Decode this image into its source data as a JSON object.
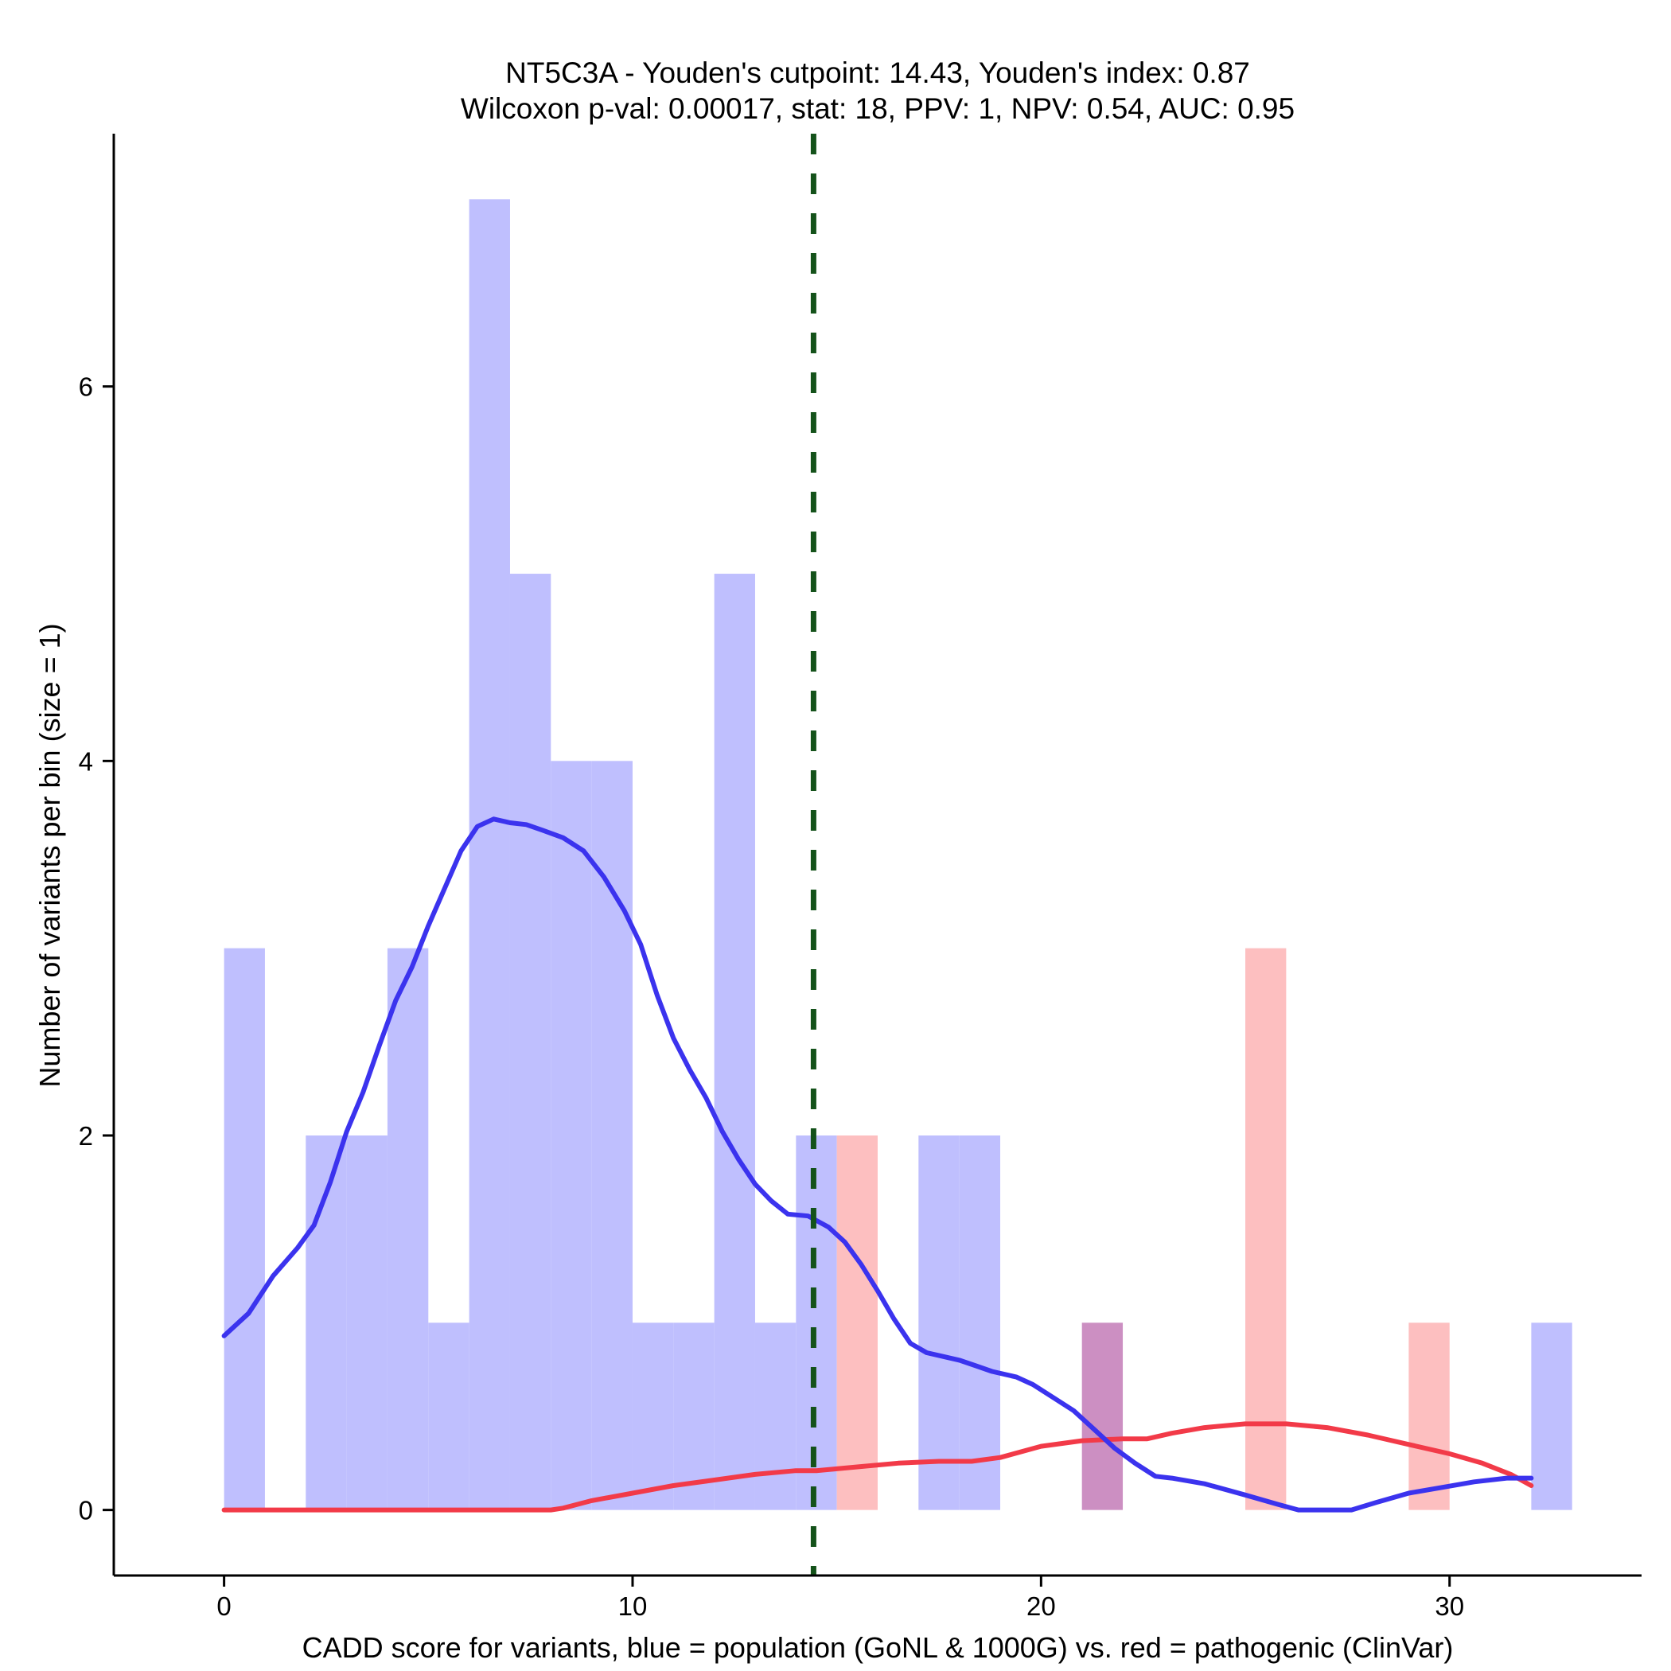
{
  "chart_data": {
    "type": "histogram",
    "title_line1": "NT5C3A - Youden's cutpoint: 14.43, Youden's index: 0.87",
    "title_line2": "Wilcoxon p-val: 0.00017, stat: 18, PPV: 1, NPV: 0.54, AUC: 0.95",
    "xlabel": "CADD score for variants, blue = population (GoNL & 1000G) vs. red = pathogenic (ClinVar)",
    "ylabel": "Number of variants per bin (size = 1)",
    "xlim": [
      -2.7,
      34.7
    ],
    "ylim": [
      -0.35,
      7.35
    ],
    "x_ticks": [
      0,
      10,
      20,
      30
    ],
    "x_tick_labels": [
      "0",
      "10",
      "20",
      "30"
    ],
    "y_ticks": [
      0,
      2,
      4,
      6
    ],
    "y_tick_labels": [
      "0",
      "2",
      "4",
      "6"
    ],
    "bin_width": 1,
    "cutpoint": 14.43,
    "colors": {
      "population_bar": "#bfbffe",
      "pathogenic_bar": "#fdbfc0",
      "overlap_bar": "#cc8fc2",
      "population_density": "#3b33ee",
      "pathogenic_density": "#f23a48",
      "cutpoint_line": "#14521a"
    },
    "series": [
      {
        "name": "population (GoNL & 1000G)",
        "bins": [
          {
            "start": 0,
            "count": 3
          },
          {
            "start": 2,
            "count": 2
          },
          {
            "start": 3,
            "count": 2
          },
          {
            "start": 4,
            "count": 3
          },
          {
            "start": 5,
            "count": 1
          },
          {
            "start": 6,
            "count": 7
          },
          {
            "start": 7,
            "count": 5
          },
          {
            "start": 8,
            "count": 4
          },
          {
            "start": 9,
            "count": 4
          },
          {
            "start": 10,
            "count": 1
          },
          {
            "start": 11,
            "count": 1
          },
          {
            "start": 12,
            "count": 5
          },
          {
            "start": 13,
            "count": 1
          },
          {
            "start": 14,
            "count": 2
          },
          {
            "start": 17,
            "count": 2
          },
          {
            "start": 18,
            "count": 2
          },
          {
            "start": 21,
            "count": 1
          },
          {
            "start": 32,
            "count": 1
          }
        ],
        "density": [
          [
            0,
            0.93
          ],
          [
            0.6,
            1.05
          ],
          [
            1.2,
            1.25
          ],
          [
            1.8,
            1.4
          ],
          [
            2.2,
            1.52
          ],
          [
            2.6,
            1.75
          ],
          [
            3.0,
            2.02
          ],
          [
            3.4,
            2.23
          ],
          [
            3.8,
            2.48
          ],
          [
            4.2,
            2.72
          ],
          [
            4.6,
            2.9
          ],
          [
            5.0,
            3.12
          ],
          [
            5.4,
            3.32
          ],
          [
            5.8,
            3.52
          ],
          [
            6.2,
            3.65
          ],
          [
            6.6,
            3.69
          ],
          [
            7.0,
            3.67
          ],
          [
            7.4,
            3.66
          ],
          [
            7.8,
            3.63
          ],
          [
            8.3,
            3.59
          ],
          [
            8.8,
            3.52
          ],
          [
            9.3,
            3.38
          ],
          [
            9.8,
            3.2
          ],
          [
            10.2,
            3.02
          ],
          [
            10.6,
            2.75
          ],
          [
            11.0,
            2.52
          ],
          [
            11.4,
            2.35
          ],
          [
            11.8,
            2.2
          ],
          [
            12.2,
            2.02
          ],
          [
            12.6,
            1.87
          ],
          [
            13.0,
            1.74
          ],
          [
            13.4,
            1.65
          ],
          [
            13.8,
            1.58
          ],
          [
            14.3,
            1.57
          ],
          [
            14.8,
            1.51
          ],
          [
            15.2,
            1.43
          ],
          [
            15.6,
            1.31
          ],
          [
            16.0,
            1.17
          ],
          [
            16.4,
            1.02
          ],
          [
            16.8,
            0.89
          ],
          [
            17.2,
            0.84
          ],
          [
            17.6,
            0.82
          ],
          [
            18.0,
            0.8
          ],
          [
            18.4,
            0.77
          ],
          [
            18.8,
            0.74
          ],
          [
            19.4,
            0.71
          ],
          [
            19.8,
            0.67
          ],
          [
            20.3,
            0.6
          ],
          [
            20.8,
            0.53
          ],
          [
            21.3,
            0.43
          ],
          [
            21.8,
            0.33
          ],
          [
            22.3,
            0.25
          ],
          [
            22.8,
            0.18
          ],
          [
            23.2,
            0.17
          ],
          [
            24.0,
            0.14
          ],
          [
            25.0,
            0.08
          ],
          [
            25.8,
            0.03
          ],
          [
            26.3,
            0.0
          ],
          [
            27.6,
            0.0
          ],
          [
            28.2,
            0.04
          ],
          [
            29.0,
            0.09
          ],
          [
            29.8,
            0.12
          ],
          [
            30.6,
            0.15
          ],
          [
            31.4,
            0.17
          ],
          [
            32,
            0.17
          ]
        ]
      },
      {
        "name": "pathogenic (ClinVar)",
        "bins": [
          {
            "start": 15,
            "count": 2
          },
          {
            "start": 21,
            "count": 1
          },
          {
            "start": 25,
            "count": 3
          },
          {
            "start": 29,
            "count": 1
          }
        ],
        "density": [
          [
            0,
            0.0
          ],
          [
            8.0,
            0.0
          ],
          [
            8.3,
            0.01
          ],
          [
            9.0,
            0.05
          ],
          [
            10.0,
            0.09
          ],
          [
            11.0,
            0.13
          ],
          [
            12.0,
            0.16
          ],
          [
            13.0,
            0.19
          ],
          [
            14.0,
            0.21
          ],
          [
            14.5,
            0.21
          ],
          [
            15.5,
            0.23
          ],
          [
            16.5,
            0.25
          ],
          [
            17.5,
            0.26
          ],
          [
            18.3,
            0.26
          ],
          [
            19.0,
            0.28
          ],
          [
            20.0,
            0.34
          ],
          [
            21.0,
            0.37
          ],
          [
            22.0,
            0.38
          ],
          [
            22.6,
            0.38
          ],
          [
            23.2,
            0.41
          ],
          [
            24.0,
            0.44
          ],
          [
            25.0,
            0.46
          ],
          [
            26.0,
            0.46
          ],
          [
            27.0,
            0.44
          ],
          [
            28.0,
            0.4
          ],
          [
            29.0,
            0.35
          ],
          [
            30.0,
            0.3
          ],
          [
            30.8,
            0.25
          ],
          [
            31.5,
            0.19
          ],
          [
            32,
            0.13
          ]
        ]
      }
    ]
  }
}
